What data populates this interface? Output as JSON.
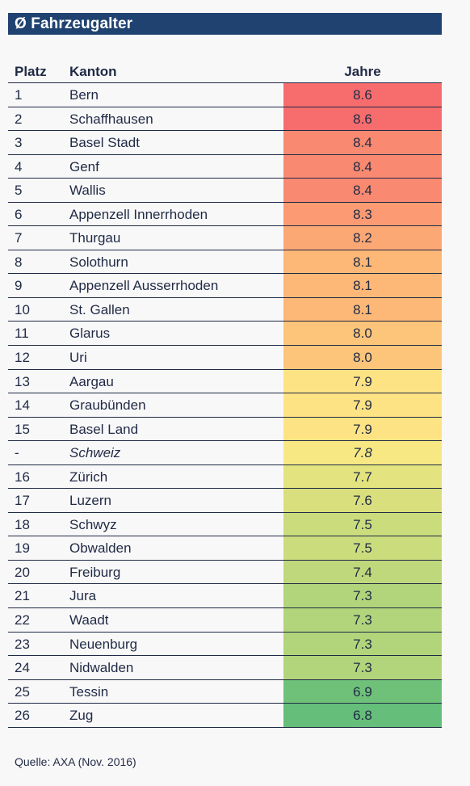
{
  "title": "Ø Fahrzeugalter",
  "headers": {
    "platz": "Platz",
    "kanton": "Kanton",
    "jahre": "Jahre"
  },
  "source": "Quelle: AXA (Nov. 2016)",
  "chart_data": {
    "type": "table",
    "title": "Ø Fahrzeugalter",
    "columns": [
      "Platz",
      "Kanton",
      "Jahre"
    ],
    "rows": [
      {
        "platz": "1",
        "kanton": "Bern",
        "jahre": "8.6",
        "color": "#f76d6d"
      },
      {
        "platz": "2",
        "kanton": "Schaffhausen",
        "jahre": "8.6",
        "color": "#f76d6d"
      },
      {
        "platz": "3",
        "kanton": "Basel Stadt",
        "jahre": "8.4",
        "color": "#f98970"
      },
      {
        "platz": "4",
        "kanton": "Genf",
        "jahre": "8.4",
        "color": "#f98970"
      },
      {
        "platz": "5",
        "kanton": "Wallis",
        "jahre": "8.4",
        "color": "#f98970"
      },
      {
        "platz": "6",
        "kanton": "Appenzell Innerrhoden",
        "jahre": "8.3",
        "color": "#fb9a73"
      },
      {
        "platz": "7",
        "kanton": "Thurgau",
        "jahre": "8.2",
        "color": "#fca875"
      },
      {
        "platz": "8",
        "kanton": "Solothurn",
        "jahre": "8.1",
        "color": "#fdb877"
      },
      {
        "platz": "9",
        "kanton": "Appenzell Ausserrhoden",
        "jahre": "8.1",
        "color": "#fdb877"
      },
      {
        "platz": "10",
        "kanton": "St. Gallen",
        "jahre": "8.1",
        "color": "#fdb877"
      },
      {
        "platz": "11",
        "kanton": "Glarus",
        "jahre": "8.0",
        "color": "#fdc57a"
      },
      {
        "platz": "12",
        "kanton": "Uri",
        "jahre": "8.0",
        "color": "#fdc57a"
      },
      {
        "platz": "13",
        "kanton": "Aargau",
        "jahre": "7.9",
        "color": "#fde384"
      },
      {
        "platz": "14",
        "kanton": "Graubünden",
        "jahre": "7.9",
        "color": "#fde384"
      },
      {
        "platz": "15",
        "kanton": "Basel Land",
        "jahre": "7.9",
        "color": "#fde384"
      },
      {
        "platz": "-",
        "kanton": "Schweiz",
        "jahre": "7.8",
        "color": "#f7e884",
        "italic": true
      },
      {
        "platz": "16",
        "kanton": "Zürich",
        "jahre": "7.7",
        "color": "#e3e37f"
      },
      {
        "platz": "17",
        "kanton": "Luzern",
        "jahre": "7.6",
        "color": "#d9df7d"
      },
      {
        "platz": "18",
        "kanton": "Schwyz",
        "jahre": "7.5",
        "color": "#cbdc7d"
      },
      {
        "platz": "19",
        "kanton": "Obwalden",
        "jahre": "7.5",
        "color": "#cbdc7d"
      },
      {
        "platz": "20",
        "kanton": "Freiburg",
        "jahre": "7.4",
        "color": "#bfd87c"
      },
      {
        "platz": "21",
        "kanton": "Jura",
        "jahre": "7.3",
        "color": "#b2d47b"
      },
      {
        "platz": "22",
        "kanton": "Waadt",
        "jahre": "7.3",
        "color": "#b2d47b"
      },
      {
        "platz": "23",
        "kanton": "Neuenburg",
        "jahre": "7.3",
        "color": "#b2d47b"
      },
      {
        "platz": "24",
        "kanton": "Nidwalden",
        "jahre": "7.3",
        "color": "#b2d47b"
      },
      {
        "platz": "25",
        "kanton": "Tessin",
        "jahre": "6.9",
        "color": "#6fc17a"
      },
      {
        "platz": "26",
        "kanton": "Zug",
        "jahre": "6.8",
        "color": "#65be79"
      }
    ]
  }
}
